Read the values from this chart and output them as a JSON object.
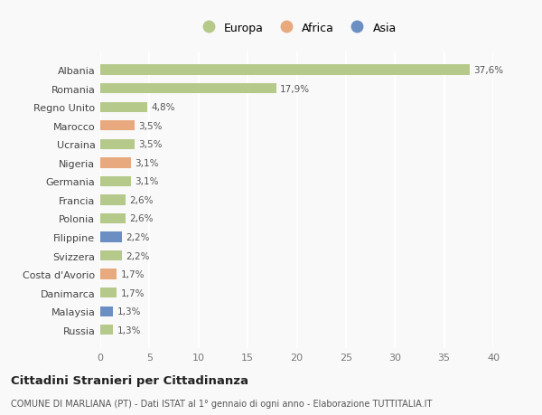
{
  "countries": [
    "Albania",
    "Romania",
    "Regno Unito",
    "Marocco",
    "Ucraina",
    "Nigeria",
    "Germania",
    "Francia",
    "Polonia",
    "Filippine",
    "Svizzera",
    "Costa d'Avorio",
    "Danimarca",
    "Malaysia",
    "Russia"
  ],
  "values": [
    37.6,
    17.9,
    4.8,
    3.5,
    3.5,
    3.1,
    3.1,
    2.6,
    2.6,
    2.2,
    2.2,
    1.7,
    1.7,
    1.3,
    1.3
  ],
  "labels": [
    "37,6%",
    "17,9%",
    "4,8%",
    "3,5%",
    "3,5%",
    "3,1%",
    "3,1%",
    "2,6%",
    "2,6%",
    "2,2%",
    "2,2%",
    "1,7%",
    "1,7%",
    "1,3%",
    "1,3%"
  ],
  "continents": [
    "Europa",
    "Europa",
    "Europa",
    "Africa",
    "Europa",
    "Africa",
    "Europa",
    "Europa",
    "Europa",
    "Asia",
    "Europa",
    "Africa",
    "Europa",
    "Asia",
    "Europa"
  ],
  "colors": {
    "Europa": "#b5c98a",
    "Africa": "#e8a97e",
    "Asia": "#6b8fc2"
  },
  "title": "Cittadini Stranieri per Cittadinanza",
  "subtitle": "COMUNE DI MARLIANA (PT) - Dati ISTAT al 1° gennaio di ogni anno - Elaborazione TUTTITALIA.IT",
  "xlim": [
    0,
    40
  ],
  "xticks": [
    0,
    5,
    10,
    15,
    20,
    25,
    30,
    35,
    40
  ],
  "bg_color": "#f9f9f9",
  "grid_color": "#ffffff"
}
